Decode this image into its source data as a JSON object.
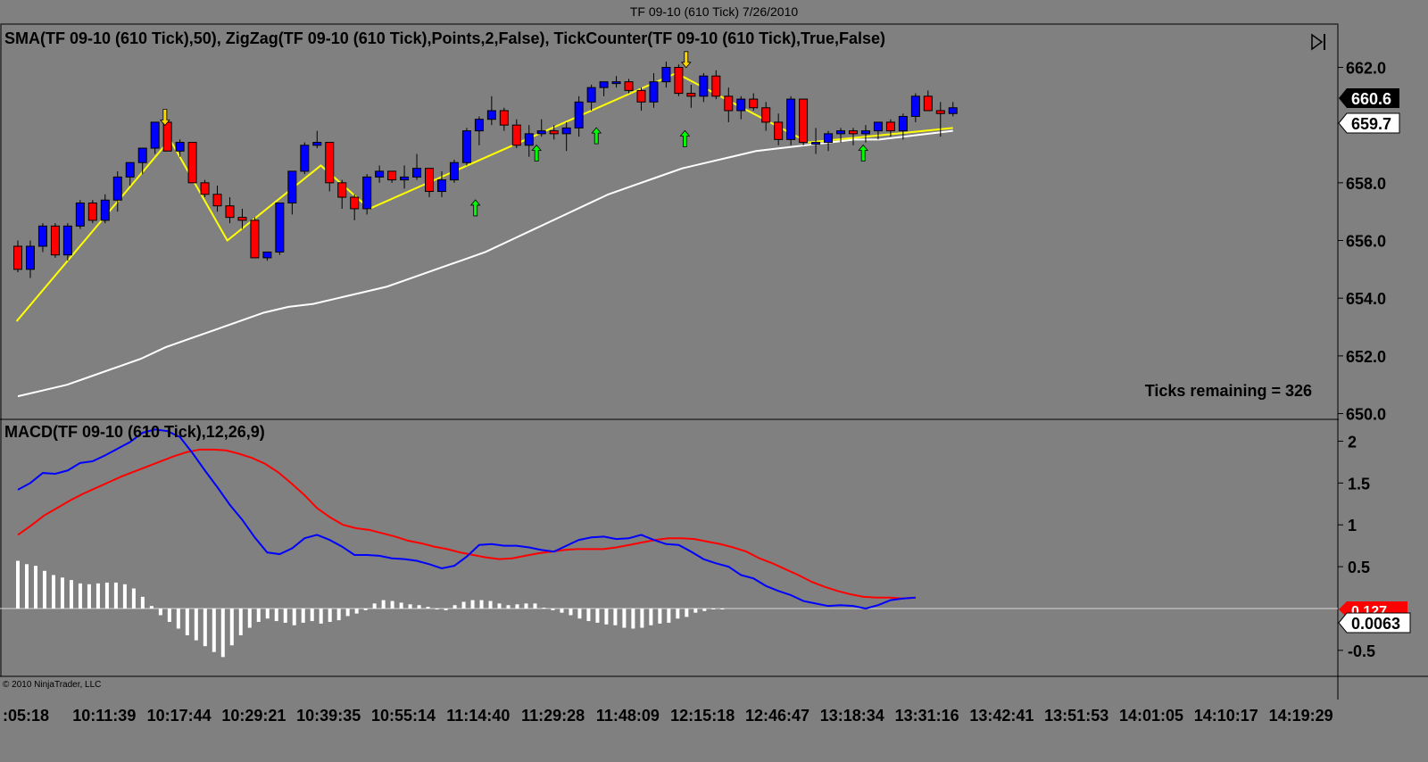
{
  "window": {
    "title": "TF 09-10 (610 Tick)  7/26/2010"
  },
  "colors": {
    "background": "#808080",
    "bullish_candle": "#0000ff",
    "bearish_candle": "#ff0000",
    "sma": "#ffffff",
    "zigzag": "#ffff00",
    "macd": "#0000ff",
    "signal": "#ff0000",
    "histogram": "#ffffff",
    "up_arrow": "#00ff00",
    "down_arrow": "#ffd700"
  },
  "price_panel": {
    "indicator_label": "SMA(TF 09-10 (610 Tick),50), ZigZag(TF 09-10 (610 Tick),Points,2,False), TickCounter(TF 09-10 (610 Tick),True,False)",
    "ticks_remaining": "Ticks remaining = 326",
    "last_price_label": "660.6",
    "sma_value_label": "659.7",
    "axis_ticks": [
      "662.0",
      "658.0",
      "656.0",
      "654.0",
      "652.0",
      "650.0"
    ],
    "end_marker_icon": "scroll-to-end-icon"
  },
  "macd_panel": {
    "indicator_label": "MACD(TF 09-10 (610 Tick),12,26,9)",
    "signal_value_label": "0.127",
    "diff_value_label": "0.0063",
    "axis_ticks": [
      "2",
      "1.5",
      "1",
      "0.5",
      "-0.5"
    ],
    "copyright": "© 2010 NinjaTrader, LLC"
  },
  "time_axis": {
    "labels": [
      ":05:18",
      "10:11:39",
      "10:17:44",
      "10:29:21",
      "10:39:35",
      "10:55:14",
      "11:14:40",
      "11:29:28",
      "11:48:09",
      "12:15:18",
      "12:46:47",
      "13:18:34",
      "13:31:16",
      "13:42:41",
      "13:51:53",
      "14:01:05",
      "14:10:17",
      "14:19:29"
    ]
  },
  "chart_data": [
    {
      "type": "candlestick",
      "ylim": [
        649.8,
        663.5
      ],
      "y_ticks": [
        662.0,
        658.0,
        656.0,
        654.0,
        652.0,
        650.0
      ],
      "candles": [
        [
          655.8,
          656.0,
          654.9,
          655.0
        ],
        [
          655.0,
          656.0,
          654.7,
          655.8
        ],
        [
          655.8,
          656.6,
          655.6,
          656.5
        ],
        [
          656.5,
          656.6,
          655.4,
          655.5
        ],
        [
          655.5,
          656.6,
          655.3,
          656.5
        ],
        [
          656.5,
          657.4,
          656.4,
          657.3
        ],
        [
          657.3,
          657.4,
          656.6,
          656.7
        ],
        [
          656.7,
          657.6,
          656.6,
          657.4
        ],
        [
          657.4,
          658.4,
          657.0,
          658.2
        ],
        [
          658.2,
          658.7,
          657.9,
          658.7
        ],
        [
          658.7,
          659.2,
          658.3,
          659.2
        ],
        [
          659.2,
          660.1,
          659.0,
          660.1
        ],
        [
          660.1,
          660.1,
          659.1,
          659.1
        ],
        [
          659.1,
          659.5,
          658.9,
          659.4
        ],
        [
          659.4,
          659.4,
          658.0,
          658.0
        ],
        [
          658.0,
          658.1,
          657.5,
          657.6
        ],
        [
          657.6,
          657.9,
          657.0,
          657.2
        ],
        [
          657.2,
          657.5,
          656.6,
          656.8
        ],
        [
          656.8,
          657.1,
          656.4,
          656.7
        ],
        [
          656.7,
          656.8,
          655.4,
          655.4
        ],
        [
          655.4,
          655.6,
          655.3,
          655.6
        ],
        [
          655.6,
          657.3,
          655.5,
          657.3
        ],
        [
          657.3,
          658.4,
          656.9,
          658.4
        ],
        [
          658.4,
          659.4,
          658.3,
          659.3
        ],
        [
          659.3,
          659.8,
          659.2,
          659.4
        ],
        [
          659.4,
          659.4,
          657.7,
          658.0
        ],
        [
          658.0,
          658.1,
          657.1,
          657.5
        ],
        [
          657.5,
          657.6,
          656.7,
          657.1
        ],
        [
          657.1,
          658.3,
          656.9,
          658.2
        ],
        [
          658.2,
          658.6,
          658.0,
          658.4
        ],
        [
          658.4,
          658.4,
          658.0,
          658.1
        ],
        [
          658.1,
          658.6,
          657.8,
          658.2
        ],
        [
          658.2,
          659.0,
          658.1,
          658.5
        ],
        [
          658.5,
          658.5,
          657.5,
          657.7
        ],
        [
          657.7,
          658.4,
          657.5,
          658.1
        ],
        [
          658.1,
          658.8,
          658.0,
          658.7
        ],
        [
          658.7,
          659.9,
          658.6,
          659.8
        ],
        [
          659.8,
          660.3,
          659.3,
          660.2
        ],
        [
          660.2,
          661.0,
          660.0,
          660.5
        ],
        [
          660.5,
          660.6,
          659.8,
          660.0
        ],
        [
          660.0,
          660.2,
          659.2,
          659.3
        ],
        [
          659.3,
          660.0,
          658.9,
          659.7
        ],
        [
          659.7,
          660.2,
          659.6,
          659.8
        ],
        [
          659.8,
          660.0,
          659.5,
          659.7
        ],
        [
          659.7,
          660.1,
          659.1,
          659.9
        ],
        [
          659.9,
          661.0,
          659.6,
          660.8
        ],
        [
          660.8,
          661.4,
          660.5,
          661.3
        ],
        [
          661.3,
          661.5,
          661.0,
          661.5
        ],
        [
          661.5,
          661.7,
          661.3,
          661.5
        ],
        [
          661.5,
          661.6,
          661.1,
          661.2
        ],
        [
          661.2,
          661.3,
          660.5,
          660.8
        ],
        [
          660.8,
          661.8,
          660.6,
          661.5
        ],
        [
          661.5,
          662.2,
          661.3,
          662.0
        ],
        [
          662.0,
          662.1,
          661.0,
          661.1
        ],
        [
          661.1,
          661.4,
          660.6,
          661.0
        ],
        [
          661.0,
          661.8,
          660.8,
          661.7
        ],
        [
          661.7,
          661.9,
          660.9,
          661.0
        ],
        [
          661.0,
          661.3,
          660.1,
          660.5
        ],
        [
          660.5,
          661.0,
          660.2,
          660.9
        ],
        [
          660.9,
          661.1,
          660.5,
          660.6
        ],
        [
          660.6,
          660.8,
          659.8,
          660.1
        ],
        [
          660.1,
          660.4,
          659.3,
          659.5
        ],
        [
          659.5,
          661.0,
          659.3,
          660.9
        ],
        [
          660.9,
          660.9,
          659.3,
          659.4
        ],
        [
          659.4,
          659.9,
          659.0,
          659.4
        ],
        [
          659.4,
          659.8,
          659.1,
          659.7
        ],
        [
          659.7,
          659.9,
          659.4,
          659.8
        ],
        [
          659.8,
          659.9,
          659.3,
          659.7
        ],
        [
          659.7,
          660.0,
          659.4,
          659.8
        ],
        [
          659.8,
          660.0,
          659.5,
          660.1
        ],
        [
          660.1,
          660.2,
          659.6,
          659.8
        ],
        [
          659.8,
          660.4,
          659.5,
          660.3
        ],
        [
          660.3,
          661.1,
          660.1,
          661.0
        ],
        [
          661.0,
          661.2,
          660.6,
          660.5
        ],
        [
          660.5,
          660.8,
          659.6,
          660.4
        ],
        [
          660.4,
          660.8,
          660.3,
          660.6
        ]
      ],
      "sma": [
        650.6,
        650.8,
        651.0,
        651.3,
        651.6,
        651.9,
        652.3,
        652.6,
        652.9,
        653.2,
        653.5,
        653.7,
        653.8,
        654.0,
        654.2,
        654.4,
        654.7,
        655.0,
        655.3,
        655.6,
        656.0,
        656.4,
        656.8,
        657.2,
        657.6,
        657.9,
        658.2,
        658.5,
        658.7,
        658.9,
        659.1,
        659.2,
        659.3,
        659.4,
        659.5,
        659.5,
        659.6,
        659.7,
        659.8
      ],
      "zigzag": [
        [
          -0.1,
          653.2
        ],
        [
          12.2,
          659.5
        ],
        [
          16.8,
          656.0
        ],
        [
          24.3,
          658.6
        ],
        [
          28.2,
          657.1
        ],
        [
          52.8,
          661.8
        ],
        [
          63.4,
          659.4
        ],
        [
          75.0,
          659.9
        ]
      ],
      "up_arrows": [
        [
          36.7,
          657.1
        ],
        [
          41.6,
          659.0
        ],
        [
          46.4,
          659.6
        ],
        [
          53.5,
          659.5
        ],
        [
          67.8,
          659.0
        ]
      ],
      "down_arrows": [
        [
          11.8,
          660.3
        ],
        [
          53.6,
          662.3
        ]
      ]
    },
    {
      "type": "macd",
      "ylim": [
        -0.8,
        2.25
      ],
      "y_ticks": [
        2,
        1.5,
        1,
        0.5,
        -0.5
      ],
      "macd": [
        1.42,
        1.5,
        1.62,
        1.61,
        1.65,
        1.74,
        1.76,
        1.83,
        1.91,
        1.99,
        2.1,
        2.14,
        2.12,
        2.05,
        1.86,
        1.65,
        1.45,
        1.24,
        1.06,
        0.85,
        0.67,
        0.65,
        0.72,
        0.84,
        0.88,
        0.82,
        0.74,
        0.64,
        0.64,
        0.63,
        0.6,
        0.59,
        0.57,
        0.53,
        0.48,
        0.51,
        0.62,
        0.76,
        0.77,
        0.75,
        0.75,
        0.73,
        0.7,
        0.68,
        0.75,
        0.82,
        0.85,
        0.86,
        0.83,
        0.84,
        0.88,
        0.82,
        0.77,
        0.76,
        0.68,
        0.59,
        0.54,
        0.5,
        0.4,
        0.36,
        0.27,
        0.21,
        0.16,
        0.09,
        0.06,
        0.03,
        0.04,
        0.03,
        0.0,
        0.04,
        0.1,
        0.12,
        0.13
      ],
      "signal": [
        0.88,
        0.99,
        1.11,
        1.2,
        1.29,
        1.37,
        1.44,
        1.51,
        1.58,
        1.64,
        1.7,
        1.76,
        1.82,
        1.87,
        1.9,
        1.9,
        1.89,
        1.85,
        1.8,
        1.73,
        1.63,
        1.5,
        1.36,
        1.2,
        1.09,
        1.0,
        0.96,
        0.94,
        0.9,
        0.86,
        0.81,
        0.78,
        0.74,
        0.71,
        0.67,
        0.64,
        0.61,
        0.59,
        0.6,
        0.63,
        0.66,
        0.68,
        0.7,
        0.71,
        0.71,
        0.71,
        0.73,
        0.76,
        0.79,
        0.82,
        0.84,
        0.84,
        0.83,
        0.8,
        0.77,
        0.73,
        0.68,
        0.6,
        0.54,
        0.47,
        0.4,
        0.32,
        0.26,
        0.21,
        0.17,
        0.14,
        0.13,
        0.13,
        0.12,
        0.13
      ],
      "histogram": [
        0.57,
        0.53,
        0.51,
        0.45,
        0.4,
        0.37,
        0.34,
        0.3,
        0.29,
        0.3,
        0.31,
        0.31,
        0.29,
        0.24,
        0.14,
        0.03,
        -0.08,
        -0.16,
        -0.24,
        -0.32,
        -0.38,
        -0.45,
        -0.52,
        -0.58,
        -0.44,
        -0.32,
        -0.23,
        -0.16,
        -0.12,
        -0.15,
        -0.17,
        -0.2,
        -0.17,
        -0.15,
        -0.18,
        -0.16,
        -0.14,
        -0.09,
        -0.06,
        -0.02,
        0.06,
        0.1,
        0.09,
        0.07,
        0.05,
        0.04,
        0.02,
        -0.01,
        -0.02,
        0.04,
        0.08,
        0.1,
        0.1,
        0.09,
        0.06,
        0.04,
        0.05,
        0.06,
        0.06,
        0.01,
        -0.02,
        -0.05,
        -0.08,
        -0.12,
        -0.15,
        -0.17,
        -0.19,
        -0.2,
        -0.23,
        -0.24,
        -0.23,
        -0.2,
        -0.18,
        -0.17,
        -0.12,
        -0.1,
        -0.05,
        -0.03,
        -0.01,
        0.0
      ]
    }
  ]
}
